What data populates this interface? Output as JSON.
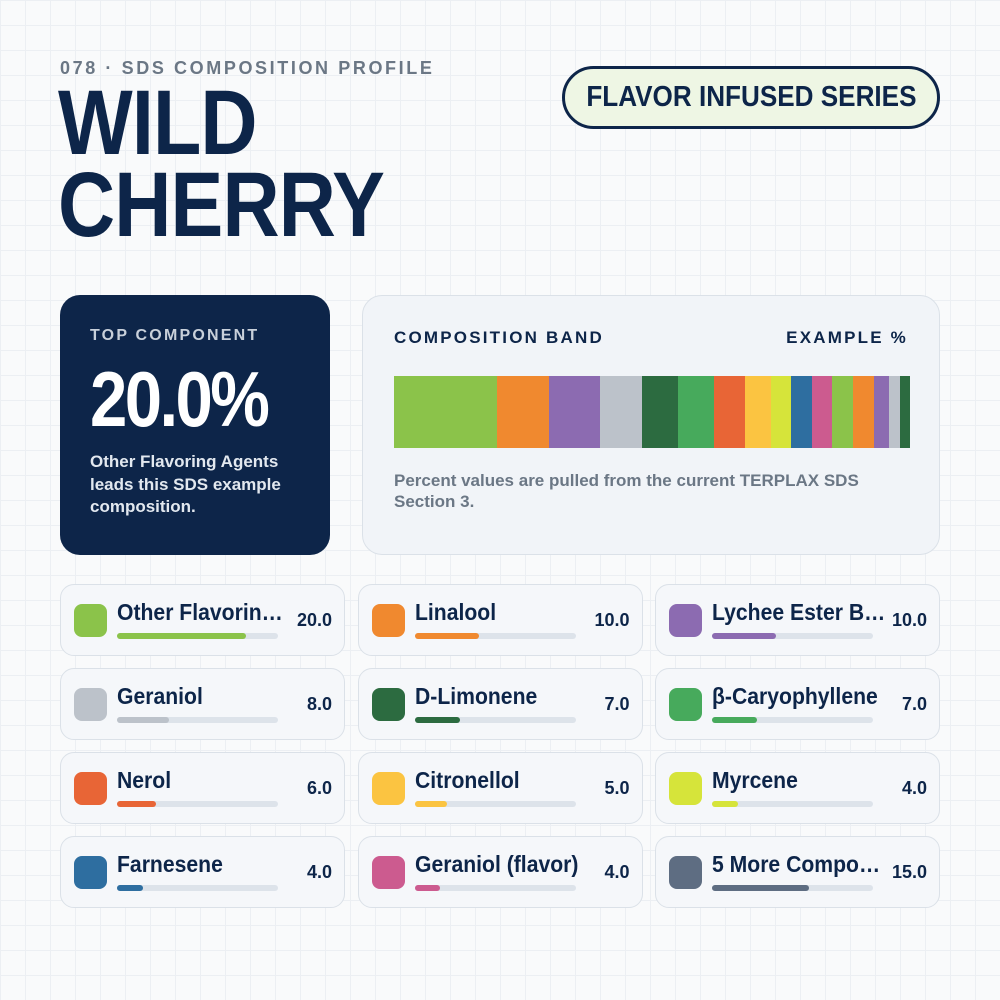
{
  "header": {
    "eyebrow": "078 · SDS COMPOSITION PROFILE",
    "title_line1": "WILD",
    "title_line2": "CHERRY",
    "series_badge": "FLAVOR INFUSED SERIES"
  },
  "top_component": {
    "label": "TOP COMPONENT",
    "value": "20.0%",
    "description": "Other Flavoring Agents leads this SDS example composition."
  },
  "band": {
    "title": "COMPOSITION BAND",
    "example_label": "EXAMPLE %",
    "note": "Percent values are pulled from the current TERPLAX SDS Section 3."
  },
  "chart_data": {
    "type": "bar",
    "categories": [
      "Other Flavorin…",
      "Linalool",
      "Lychee Ester B…",
      "Geraniol",
      "D-Limonene",
      "β-Caryophyllene",
      "Nerol",
      "Citronellol",
      "Myrcene",
      "Farnesene",
      "Geraniol (flavor)",
      "5 More Compo…"
    ],
    "values": [
      20.0,
      10.0,
      10.0,
      8.0,
      7.0,
      7.0,
      6.0,
      5.0,
      4.0,
      4.0,
      4.0,
      15.0
    ],
    "value_labels": [
      "20.0",
      "10.0",
      "10.0",
      "8.0",
      "7.0",
      "7.0",
      "6.0",
      "5.0",
      "4.0",
      "4.0",
      "4.0",
      "15.0"
    ],
    "colors": [
      "#8bc34a",
      "#f0892f",
      "#8c6bb1",
      "#bcc2ca",
      "#2c6b40",
      "#47aa5c",
      "#e86536",
      "#fbc441",
      "#d6e43a",
      "#2e6ea0",
      "#cc5b8f",
      "#5e6d82"
    ],
    "bar_max": 25,
    "band_segments": [
      {
        "value": 20.0,
        "color": "#8bc34a"
      },
      {
        "value": 10.0,
        "color": "#f0892f"
      },
      {
        "value": 10.0,
        "color": "#8c6bb1"
      },
      {
        "value": 8.0,
        "color": "#bcc2ca"
      },
      {
        "value": 7.0,
        "color": "#2c6b40"
      },
      {
        "value": 7.0,
        "color": "#47aa5c"
      },
      {
        "value": 6.0,
        "color": "#e86536"
      },
      {
        "value": 5.0,
        "color": "#fbc441"
      },
      {
        "value": 4.0,
        "color": "#d6e43a"
      },
      {
        "value": 4.0,
        "color": "#2e6ea0"
      },
      {
        "value": 4.0,
        "color": "#cc5b8f"
      },
      {
        "value": 4.0,
        "color": "#8bc34a"
      },
      {
        "value": 4.0,
        "color": "#f0892f"
      },
      {
        "value": 3.0,
        "color": "#8c6bb1"
      },
      {
        "value": 2.0,
        "color": "#bcc2ca"
      },
      {
        "value": 2.0,
        "color": "#2c6b40"
      }
    ]
  }
}
